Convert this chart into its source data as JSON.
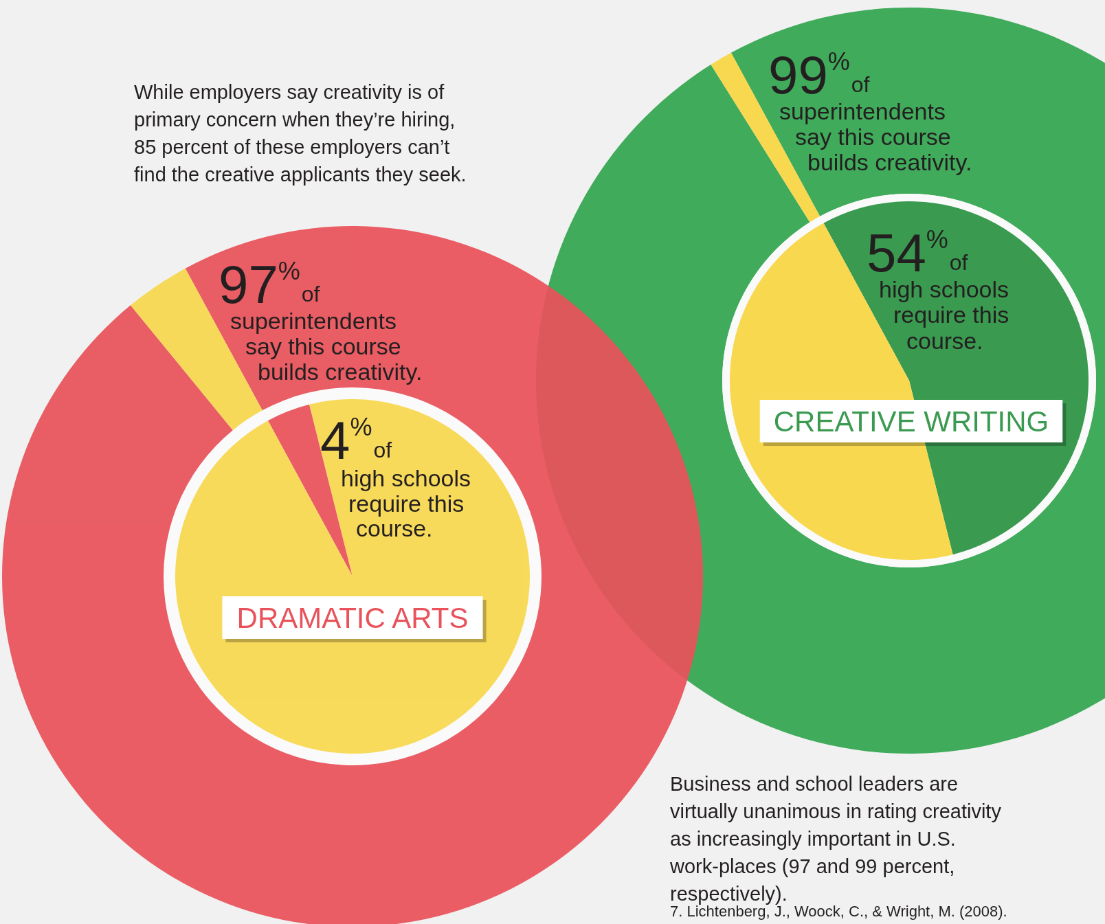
{
  "chart_data": [
    {
      "type": "donut",
      "categories": [
        null,
        null
      ],
      "values": [
        97,
        3
      ],
      "colors": [
        "#e9525a",
        "#f8d84f"
      ],
      "value_labels": [
        "97$^{%}$",
        null
      ],
      "annotations": [
        "of superintendents say this course builds creativity.",
        "While employers say creativity is of primary concern when they’re hiring, 85 percent of these employers can’t find the creative applicants they seek.",
        "Business and school leaders are virtually unanimous in rating creativity as increasingly important in U.S. work-places (97 and 99 percent, respectively).",
        "7. Lichtenberg, J., Woock, C., & Wright, M. (2008)."
      ]
    },
    {
      "type": "pie",
      "title": "DRAMATIC ARTS",
      "categories": [
        null,
        null
      ],
      "values": [
        4,
        96
      ],
      "colors": [
        "#e9525a",
        "#f8d84f"
      ],
      "value_labels": [
        "4$^{%}$",
        null
      ],
      "annotations": [
        "of high schools require this course."
      ]
    },
    {
      "type": "donut",
      "categories": [
        null,
        null
      ],
      "values": [
        99,
        1
      ],
      "colors": [
        "#40ab5b",
        "#f8d84f"
      ],
      "value_labels": [
        "99$^{%}$",
        null
      ],
      "annotations": [
        "of superintendents say this course builds creativity."
      ]
    },
    {
      "type": "pie",
      "title": "CREATIVE WRITING",
      "categories": [
        null,
        null
      ],
      "values": [
        54,
        46
      ],
      "colors": [
        "#3a9a50",
        "#f8d84f"
      ],
      "value_labels": [
        "54$^{%}$",
        null
      ],
      "annotations": [
        "of high schools require this course."
      ]
    }
  ]
}
